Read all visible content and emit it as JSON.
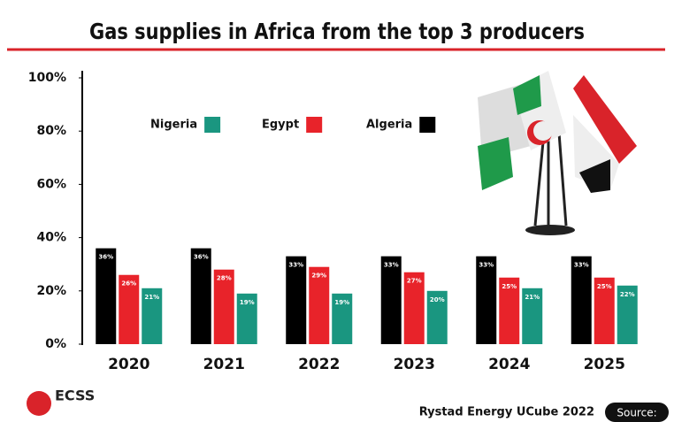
{
  "chart_data": {
    "type": "bar",
    "title": "Gas supplies in Africa from the top 3 producers",
    "categories": [
      "2020",
      "2021",
      "2022",
      "2023",
      "2024",
      "2025"
    ],
    "series": [
      {
        "name": "Algeria",
        "color": "#000000",
        "values": [
          36,
          36,
          33,
          33,
          33,
          33
        ],
        "value_labels": [
          "36%",
          "36%",
          "33%",
          "33%",
          "33%",
          "33%"
        ]
      },
      {
        "name": "Egypt",
        "color": "#e8232a",
        "values": [
          26,
          28,
          29,
          27,
          25,
          25
        ],
        "value_labels": [
          "26%",
          "28%",
          "29%",
          "27%",
          "25%",
          "25%"
        ]
      },
      {
        "name": "Nigeria",
        "color": "#1a9680",
        "values": [
          21,
          19,
          19,
          20,
          21,
          22
        ],
        "value_labels": [
          "21%",
          "19%",
          "19%",
          "20%",
          "21%",
          "22%"
        ]
      }
    ],
    "ylim": [
      0,
      100
    ],
    "yticks": [
      {
        "value": 0,
        "label": "0%"
      },
      {
        "value": 20,
        "label": "20%"
      },
      {
        "value": 40,
        "label": "40%"
      },
      {
        "value": 60,
        "label": "60%"
      },
      {
        "value": 80,
        "label": "80%"
      },
      {
        "value": 100,
        "label": "100%"
      }
    ],
    "source_label": "Source:",
    "source": "Rystad Energy UCube 2022",
    "logo": "ECSS"
  }
}
